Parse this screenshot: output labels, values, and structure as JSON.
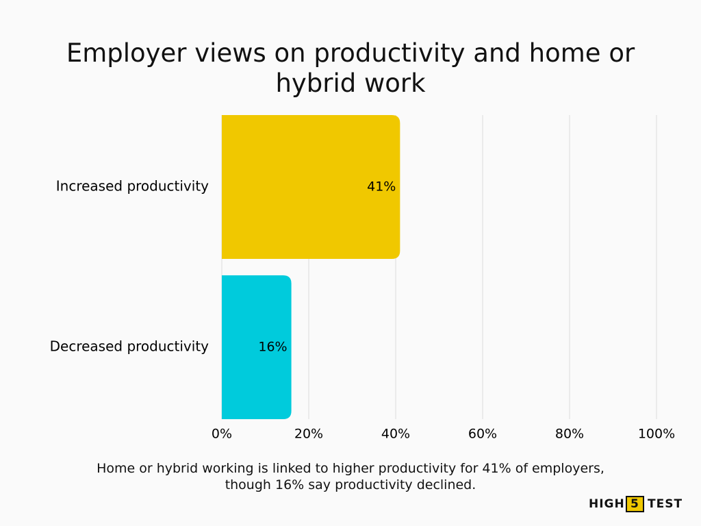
{
  "chart_data": {
    "type": "hbar",
    "title": "Employer views on productivity and home or hybrid work",
    "categories": [
      "Increased productivity",
      "Decreased productivity"
    ],
    "values": [
      41,
      16
    ],
    "value_labels": [
      "41%",
      "16%"
    ],
    "colors": [
      "#f0c800",
      "#00cbdc"
    ],
    "xlim": [
      0,
      100
    ],
    "xticks": [
      {
        "value": 0,
        "label": "0%"
      },
      {
        "value": 20,
        "label": "20%"
      },
      {
        "value": 40,
        "label": "40%"
      },
      {
        "value": 60,
        "label": "60%"
      },
      {
        "value": 80,
        "label": "80%"
      },
      {
        "value": 100,
        "label": "100%"
      }
    ],
    "grid": true,
    "caption": "Home or hybrid working is linked to higher productivity for 41% of employers, though 16% say productivity declined."
  },
  "brand": [
    "HIGH",
    "5",
    "TEST"
  ]
}
